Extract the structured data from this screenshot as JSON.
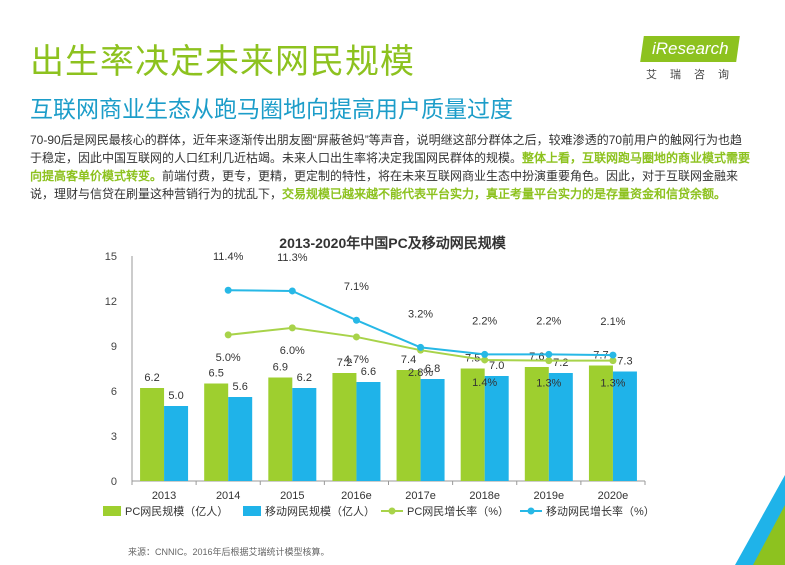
{
  "page": {
    "title": "出生率决定未来网民规模",
    "subtitle": "互联网商业生态从跑马圈地向提高用户质量过度",
    "paragraph": [
      {
        "text": "70-90后是网民最核心的群体，近年来逐渐传出朋友圈“屏蔽爸妈”等声音，说明继这部分群体之后，较难渗透的70前用户的触网行为也趋于稳定，因此中国互联网的人口红利几近枯竭。未来人口出生率将决定我国网民群体的规模。",
        "bold": false
      },
      {
        "text": "整体上看，互联网跑马圈地的商业模式需要向提高客单价模式转变。",
        "bold": true
      },
      {
        "text": "前端付费，更专，更精，更定制的特性，将在未来互联网商业生态中扮演重要角色。因此，对于互联网金融来说，理财与信贷在刷量这种营销行为的扰乱下，",
        "bold": false
      },
      {
        "text": "交易规模已越来越不能代表平台实力，真正考量平台实力的是存量资金和信贷余额。",
        "bold": true
      }
    ],
    "footer": "来源：CNNIC。2016年后根据艾瑞统计模型核算。"
  },
  "logo": {
    "brand": "iResearch",
    "cn": "艾瑞咨询"
  },
  "colors": {
    "pc": "#9ecf2f",
    "mobile": "#1fb3e9",
    "pc_line": "#a8d34a",
    "mobile_line": "#27b8e6",
    "title_green": "#8dc21f",
    "subtitle_blue": "#1c9dc9"
  },
  "chart_data": {
    "type": "bar",
    "title": "2013-2020年中国PC及移动网民规模",
    "categories": [
      "2013",
      "2014",
      "2015",
      "2016e",
      "2017e",
      "2018e",
      "2019e",
      "2020e"
    ],
    "ylim": [
      0,
      15
    ],
    "yticks": [
      "0",
      "3",
      "6",
      "9",
      "12",
      "15"
    ],
    "series": [
      {
        "name": "PC网民规模（亿人）",
        "kind": "bar",
        "values": [
          6.2,
          6.5,
          6.9,
          7.2,
          7.4,
          7.5,
          7.6,
          7.7
        ],
        "labels": [
          "6.2",
          "6.5",
          "6.9",
          "7.2",
          "7.4",
          "7.5",
          "7.6",
          "7.7"
        ]
      },
      {
        "name": "移动网民规模（亿人）",
        "kind": "bar",
        "values": [
          5.0,
          5.6,
          6.2,
          6.6,
          6.8,
          7.0,
          7.2,
          7.3
        ],
        "labels": [
          "5.0",
          "5.6",
          "6.2",
          "6.6",
          "6.8",
          "7.0",
          "7.2",
          "7.3"
        ]
      },
      {
        "name": "PC网民增长率（%）",
        "kind": "line",
        "values": [
          null,
          5.0,
          6.0,
          4.7,
          2.8,
          1.4,
          1.3,
          1.3
        ],
        "labels": [
          "",
          "5.0%",
          "6.0%",
          "4.7%",
          "2.8%",
          "1.4%",
          "1.3%",
          "1.3%"
        ]
      },
      {
        "name": "移动网民增长率（%）",
        "kind": "line",
        "values": [
          null,
          11.4,
          11.3,
          7.1,
          3.2,
          2.2,
          2.2,
          2.1
        ],
        "labels": [
          "",
          "11.4%",
          "11.3%",
          "7.1%",
          "3.2%",
          "2.2%",
          "2.2%",
          "2.1%"
        ]
      }
    ],
    "legend_position": "bottom"
  }
}
